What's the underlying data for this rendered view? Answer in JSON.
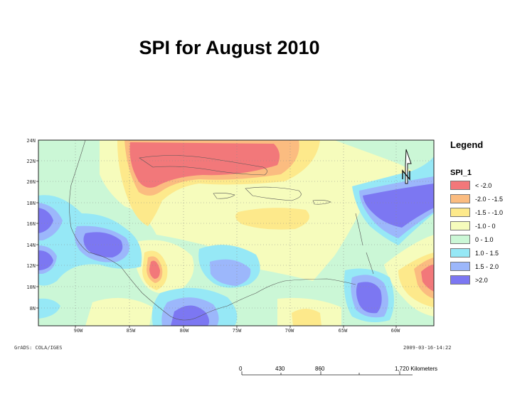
{
  "title": "SPI for  August 2010",
  "map": {
    "lat_labels": [
      "24N",
      "22N",
      "20N",
      "18N",
      "16N",
      "14N",
      "12N",
      "10N",
      "8N"
    ],
    "lon_labels": [
      "90W",
      "85W",
      "80W",
      "75W",
      "70W",
      "65W",
      "60W"
    ],
    "credit": "GrADS: COLA/IGES",
    "timestamp": "2009-03-16-14:22",
    "north_label": "N"
  },
  "legend": {
    "title": "Legend",
    "layer": "SPI_1",
    "items": [
      {
        "label": "< -2.0",
        "color": "#f2787a"
      },
      {
        "label": "-2.0 - -1.5",
        "color": "#fbbc80"
      },
      {
        "label": "-1.5 - -1.0",
        "color": "#fde98b"
      },
      {
        "label": "-1.0 - 0",
        "color": "#f6fcbc"
      },
      {
        "label": "0 - 1.0",
        "color": "#cbf7d6"
      },
      {
        "label": "1.0 - 1.5",
        "color": "#96e8f6"
      },
      {
        "label": "1.5 - 2.0",
        "color": "#9cb7fb"
      },
      {
        "label": ">2.0",
        "color": "#7c77f2"
      }
    ]
  },
  "scale": {
    "labels": [
      "0",
      "430",
      "860",
      "1,720 Kilometers"
    ]
  }
}
